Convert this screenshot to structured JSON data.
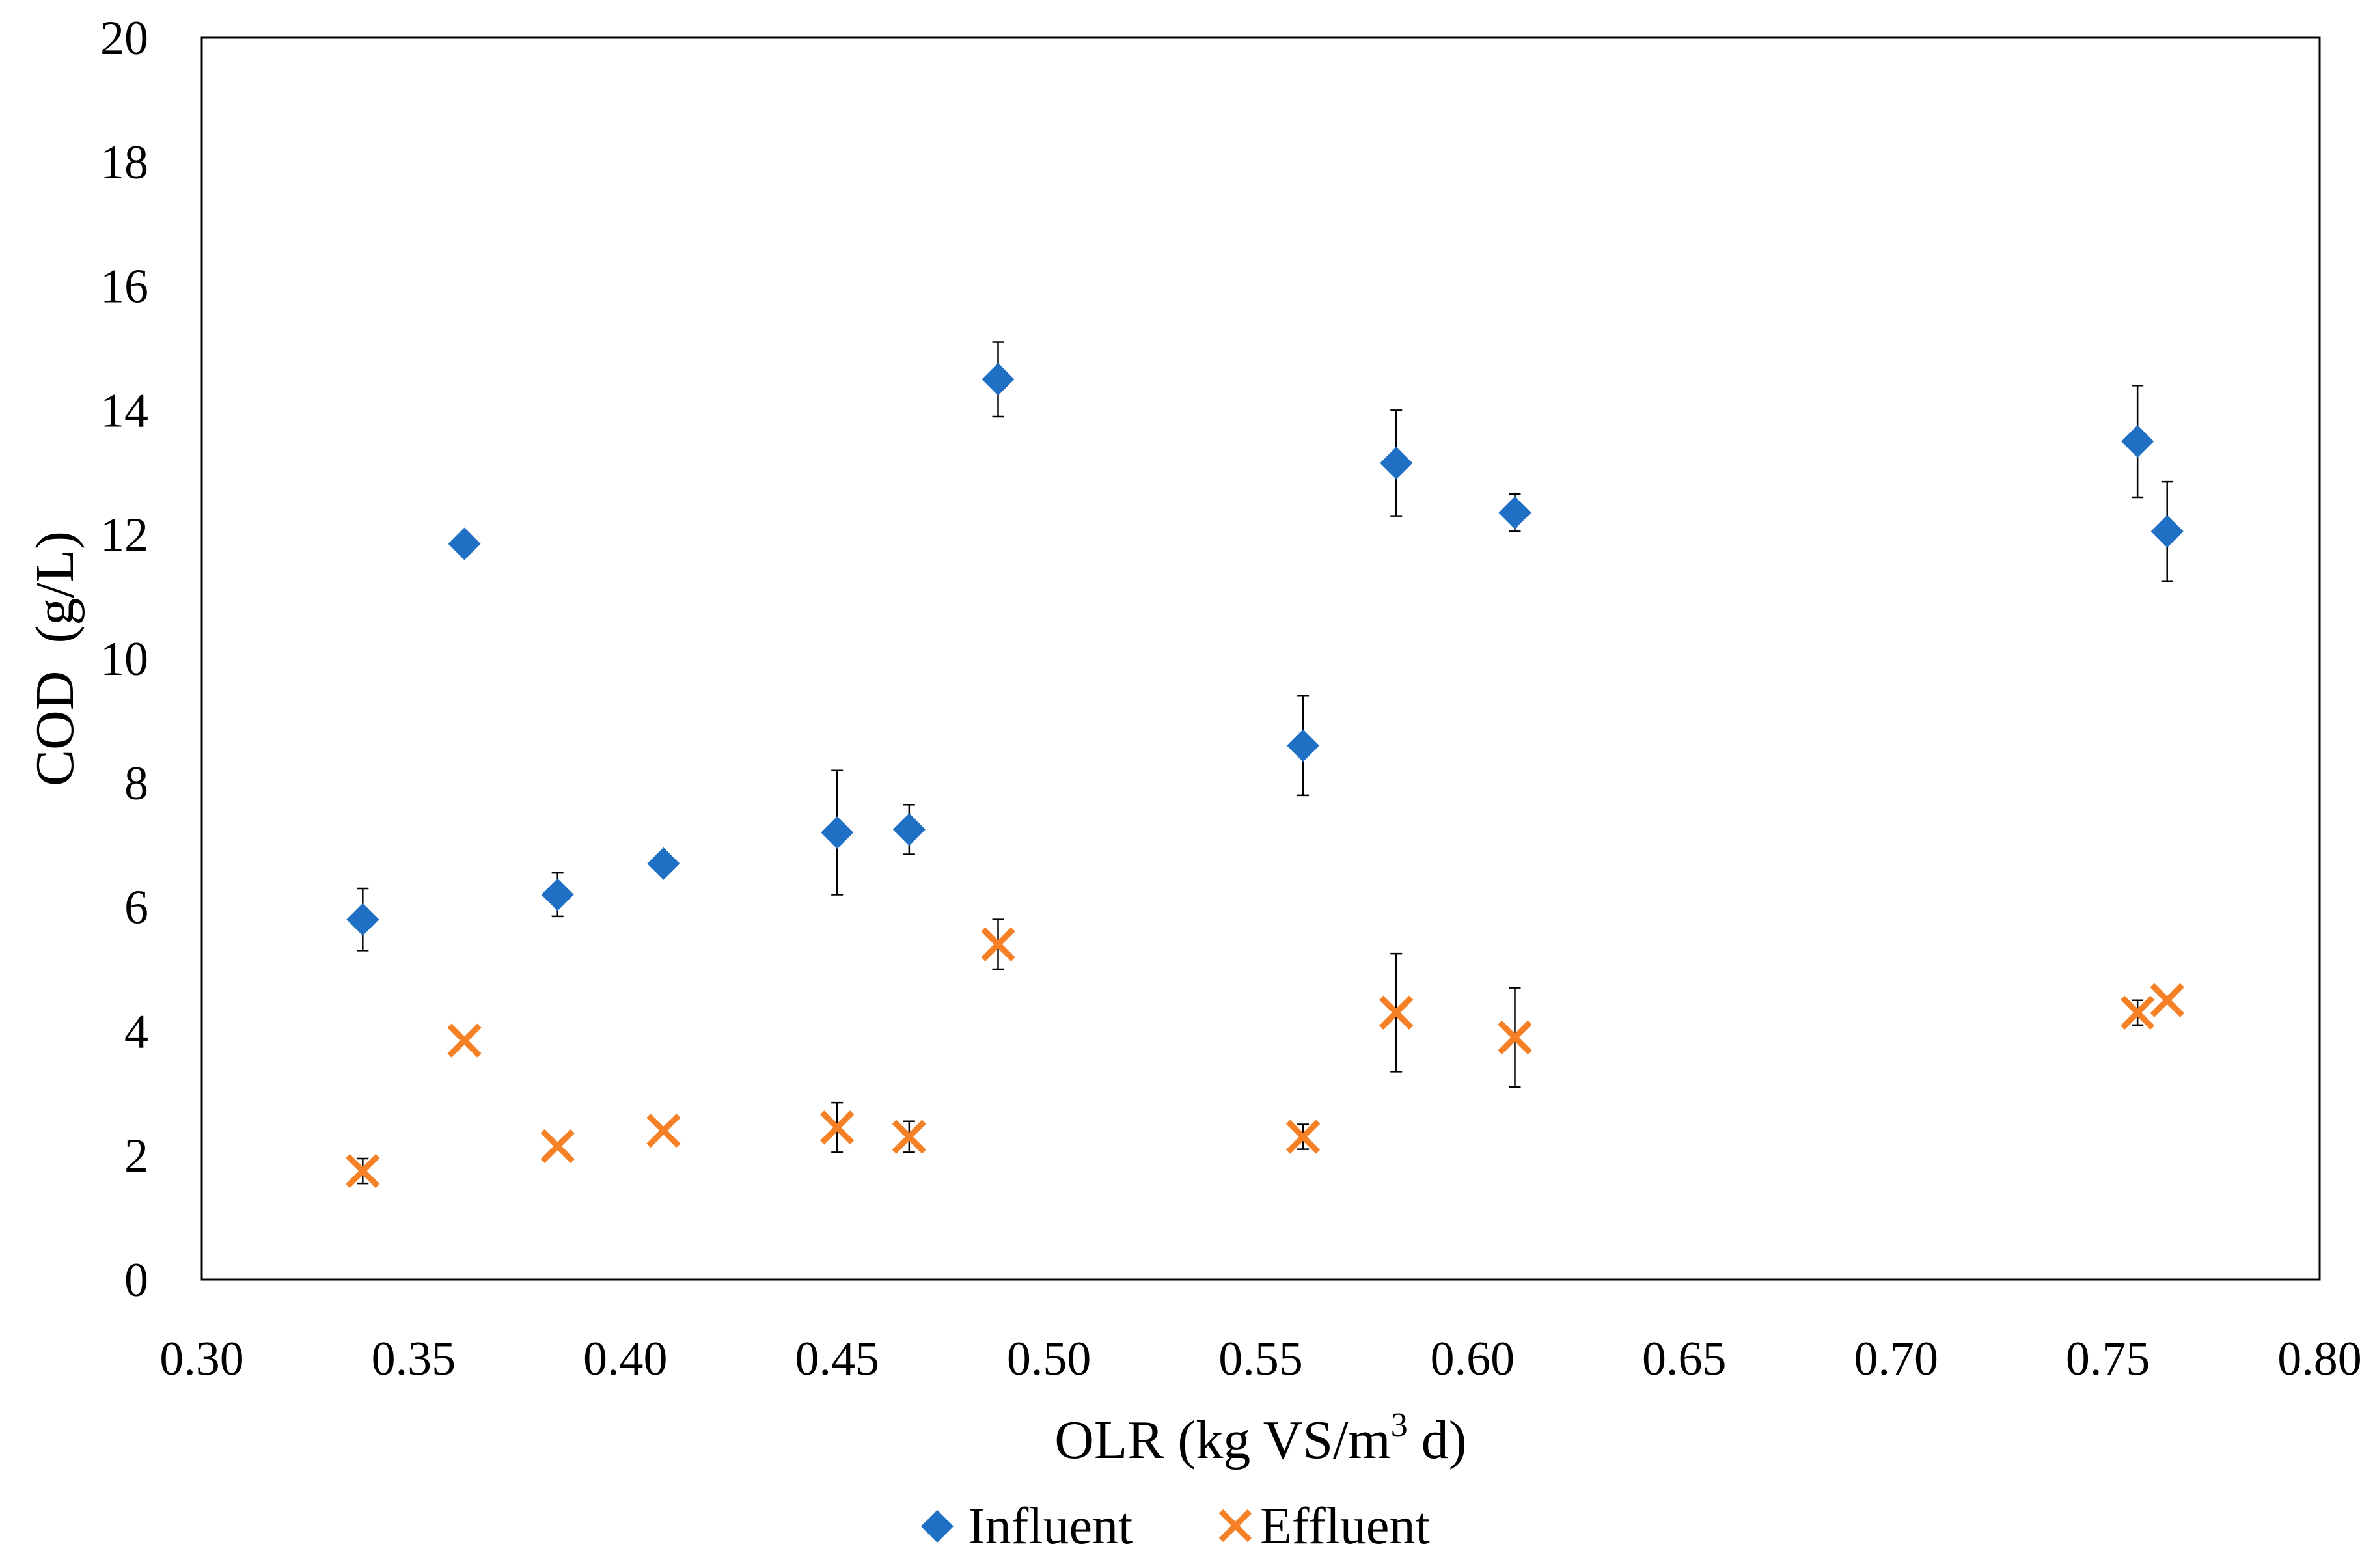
{
  "chart_data": {
    "type": "scatter",
    "title": "",
    "xlabel": "OLR (kg VS/m³ d)",
    "xlabel_parts": {
      "pre": "OLR (kg VS/m",
      "sup": "3",
      "post": " d)"
    },
    "ylabel": "COD  (g/L)",
    "xlim": [
      0.3,
      0.8
    ],
    "ylim": [
      0,
      20
    ],
    "x_ticks": [
      "0.30",
      "0.35",
      "0.40",
      "0.45",
      "0.50",
      "0.55",
      "0.60",
      "0.65",
      "0.70",
      "0.75",
      "0.80"
    ],
    "y_ticks": [
      "0",
      "2",
      "4",
      "6",
      "8",
      "10",
      "12",
      "14",
      "16",
      "18",
      "20"
    ],
    "grid": false,
    "legend_position": "bottom-center",
    "series": [
      {
        "name": "Influent",
        "marker": "diamond",
        "color": "#1f6fc5",
        "points": [
          {
            "x": 0.338,
            "y": 5.8,
            "err": 0.5
          },
          {
            "x": 0.362,
            "y": 11.85,
            "err": 0
          },
          {
            "x": 0.384,
            "y": 6.2,
            "err": 0.35
          },
          {
            "x": 0.409,
            "y": 6.7,
            "err": 0
          },
          {
            "x": 0.45,
            "y": 7.2,
            "err": 1.0
          },
          {
            "x": 0.467,
            "y": 7.25,
            "err": 0.4
          },
          {
            "x": 0.488,
            "y": 14.5,
            "err": 0.6
          },
          {
            "x": 0.56,
            "y": 8.6,
            "err": 0.8
          },
          {
            "x": 0.582,
            "y": 13.15,
            "err": 0.85
          },
          {
            "x": 0.61,
            "y": 12.35,
            "err": 0.3
          },
          {
            "x": 0.757,
            "y": 13.5,
            "err": 0.9
          },
          {
            "x": 0.764,
            "y": 12.05,
            "err": 0.8
          }
        ]
      },
      {
        "name": "Effluent",
        "marker": "x",
        "color": "#f58025",
        "points": [
          {
            "x": 0.338,
            "y": 1.75,
            "err": 0.2
          },
          {
            "x": 0.362,
            "y": 3.85,
            "err": 0
          },
          {
            "x": 0.384,
            "y": 2.15,
            "err": 0
          },
          {
            "x": 0.409,
            "y": 2.4,
            "err": 0
          },
          {
            "x": 0.45,
            "y": 2.45,
            "err": 0.4
          },
          {
            "x": 0.467,
            "y": 2.3,
            "err": 0.25
          },
          {
            "x": 0.488,
            "y": 5.4,
            "err": 0.4
          },
          {
            "x": 0.56,
            "y": 2.3,
            "err": 0.2
          },
          {
            "x": 0.582,
            "y": 4.3,
            "err": 0.95
          },
          {
            "x": 0.61,
            "y": 3.9,
            "err": 0.8
          },
          {
            "x": 0.757,
            "y": 4.3,
            "err": 0.2
          },
          {
            "x": 0.764,
            "y": 4.5,
            "err": 0
          }
        ]
      }
    ]
  }
}
